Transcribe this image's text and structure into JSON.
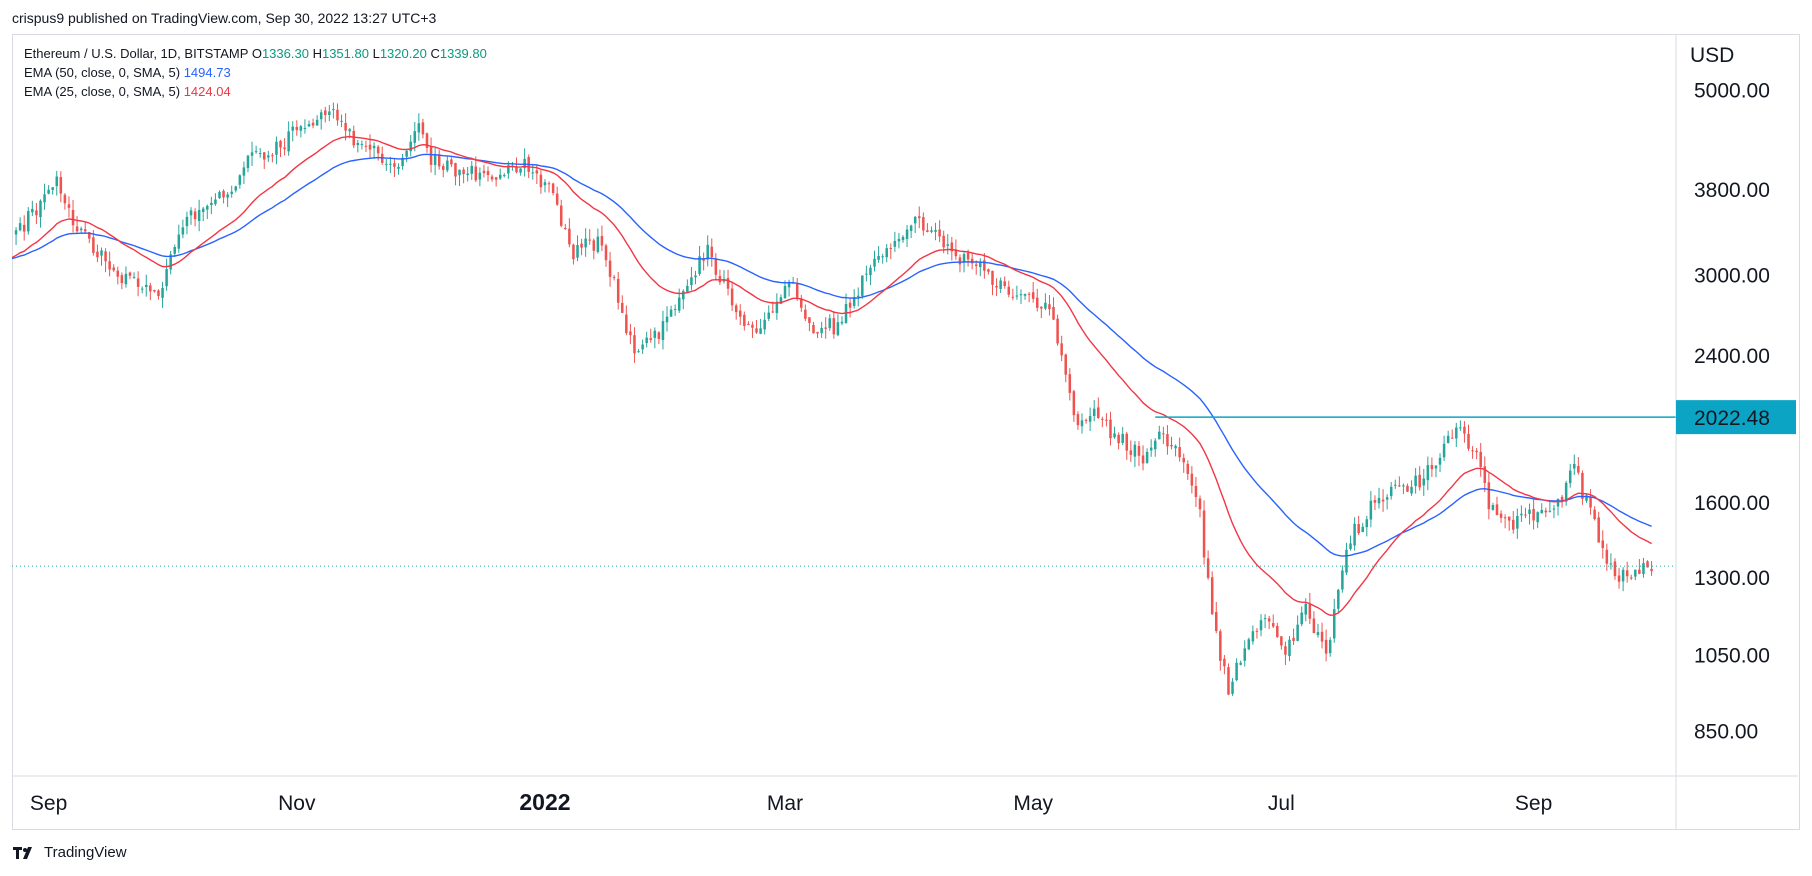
{
  "header": {
    "published": "crispus9 published on TradingView.com, Sep 30, 2022 13:27 UTC+3"
  },
  "legend": {
    "symbol": "Ethereum / U.S. Dollar, 1D, BITSTAMP",
    "o_label": "O",
    "o_value": "1336.30",
    "h_label": "H",
    "h_value": "1351.80",
    "l_label": "L",
    "l_value": "1320.20",
    "c_label": "C",
    "c_value": "1339.80",
    "ema50_label": "EMA (50, close, 0, SMA, 5)",
    "ema50_value": "1494.73",
    "ema25_label": "EMA (25, close, 0, SMA, 5)",
    "ema25_value": "1424.04"
  },
  "footer": {
    "brand": "TradingView"
  },
  "colors": {
    "up": "#26a69a",
    "down": "#ef5350",
    "ema50": "#2962ff",
    "ema25": "#f23645",
    "level": "#0ba4c4",
    "last_price": "#26a69a"
  },
  "chart_data": {
    "type": "candlestick",
    "symbol": "ETHUSD",
    "interval": "1D",
    "scale": "log",
    "currency": "USD",
    "y_ticks": [
      850,
      1050,
      1300,
      1600,
      2400,
      3000,
      3800,
      5000
    ],
    "y_tick_labels": [
      "850.00",
      "1050.00",
      "1300.00",
      "1600.00",
      "2400.00",
      "3000.00",
      "3800.00",
      "5000.00"
    ],
    "ylabel": "USD",
    "x_tick_labels": [
      "Sep",
      "Nov",
      "2022",
      "Mar",
      "May",
      "Jul",
      "Sep"
    ],
    "x_tick_dates": [
      "2021-09-01",
      "2021-11-01",
      "2022-01-01",
      "2022-03-01",
      "2022-05-01",
      "2022-07-01",
      "2022-09-01"
    ],
    "x_range": [
      "2021-08-23",
      "2022-10-06"
    ],
    "y_range": [
      750,
      5800
    ],
    "horizontal_level": {
      "value": 2022.48,
      "label": "2022.48",
      "start_date": "2022-05-31"
    },
    "last_price": 1339.8,
    "anchors": [
      [
        "2021-08-23",
        3300
      ],
      [
        "2021-09-03",
        3900
      ],
      [
        "2021-09-07",
        3450
      ],
      [
        "2021-09-20",
        2950
      ],
      [
        "2021-09-28",
        2850
      ],
      [
        "2021-10-05",
        3500
      ],
      [
        "2021-10-15",
        3800
      ],
      [
        "2021-10-21",
        4150
      ],
      [
        "2021-10-28",
        4300
      ],
      [
        "2021-11-09",
        4800
      ],
      [
        "2021-11-16",
        4300
      ],
      [
        "2021-11-26",
        4050
      ],
      [
        "2021-12-01",
        4600
      ],
      [
        "2021-12-04",
        4150
      ],
      [
        "2021-12-10",
        4000
      ],
      [
        "2021-12-20",
        3950
      ],
      [
        "2021-12-27",
        4050
      ],
      [
        "2022-01-02",
        3800
      ],
      [
        "2022-01-08",
        3200
      ],
      [
        "2022-01-15",
        3300
      ],
      [
        "2022-01-21",
        2600
      ],
      [
        "2022-01-24",
        2400
      ],
      [
        "2022-01-30",
        2600
      ],
      [
        "2022-02-06",
        3000
      ],
      [
        "2022-02-10",
        3200
      ],
      [
        "2022-02-14",
        2900
      ],
      [
        "2022-02-20",
        2600
      ],
      [
        "2022-02-24",
        2600
      ],
      [
        "2022-03-02",
        2950
      ],
      [
        "2022-03-07",
        2600
      ],
      [
        "2022-03-14",
        2600
      ],
      [
        "2022-03-20",
        2950
      ],
      [
        "2022-03-28",
        3300
      ],
      [
        "2022-04-03",
        3500
      ],
      [
        "2022-04-10",
        3200
      ],
      [
        "2022-04-18",
        3050
      ],
      [
        "2022-04-24",
        2900
      ],
      [
        "2022-04-30",
        2800
      ],
      [
        "2022-05-05",
        2750
      ],
      [
        "2022-05-09",
        2250
      ],
      [
        "2022-05-12",
        1950
      ],
      [
        "2022-05-15",
        2050
      ],
      [
        "2022-05-20",
        1950
      ],
      [
        "2022-05-28",
        1800
      ],
      [
        "2022-06-01",
        1950
      ],
      [
        "2022-06-06",
        1800
      ],
      [
        "2022-06-11",
        1550
      ],
      [
        "2022-06-14",
        1150
      ],
      [
        "2022-06-18",
        950
      ],
      [
        "2022-06-23",
        1100
      ],
      [
        "2022-06-27",
        1150
      ],
      [
        "2022-07-02",
        1050
      ],
      [
        "2022-07-07",
        1200
      ],
      [
        "2022-07-12",
        1050
      ],
      [
        "2022-07-18",
        1450
      ],
      [
        "2022-07-24",
        1600
      ],
      [
        "2022-07-30",
        1650
      ],
      [
        "2022-08-05",
        1700
      ],
      [
        "2022-08-13",
        1980
      ],
      [
        "2022-08-18",
        1800
      ],
      [
        "2022-08-21",
        1600
      ],
      [
        "2022-08-27",
        1500
      ],
      [
        "2022-09-01",
        1550
      ],
      [
        "2022-09-07",
        1600
      ],
      [
        "2022-09-11",
        1750
      ],
      [
        "2022-09-14",
        1600
      ],
      [
        "2022-09-19",
        1350
      ],
      [
        "2022-09-21",
        1300
      ],
      [
        "2022-09-24",
        1320
      ],
      [
        "2022-09-30",
        1340
      ]
    ]
  }
}
